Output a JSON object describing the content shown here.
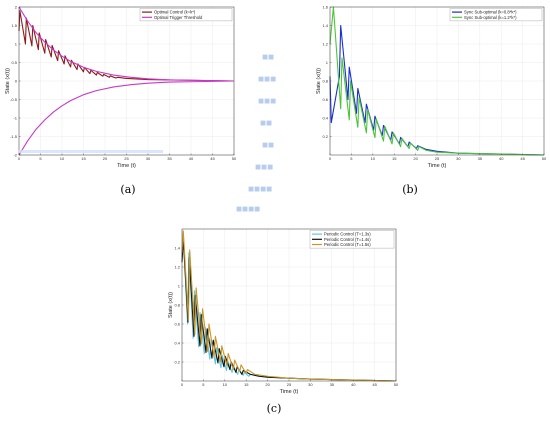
{
  "colors": {
    "axis": "#333333",
    "grid": "#e6e6e6",
    "artifact_text": "#b8ccee",
    "artifact_band": "#cfe0ff"
  },
  "chart_data": [
    {
      "panel": "a",
      "caption": "(a)",
      "type": "line",
      "xlabel": "Time (t)",
      "ylabel": "State (x(t))",
      "xlim": [
        0,
        50
      ],
      "ylim": [
        -2,
        2
      ],
      "xticks": [
        0,
        5,
        10,
        15,
        20,
        25,
        30,
        35,
        40,
        45,
        50
      ],
      "yticks": [
        -2,
        -1.5,
        -1,
        -0.5,
        0,
        0.5,
        1,
        1.5,
        2
      ],
      "grid": true,
      "legend_position": "top-right",
      "series": [
        {
          "name": "Optimal Control (k=k*)",
          "color": "#8b1a1a",
          "x": [
            0,
            0.2,
            1.5,
            1.7,
            3.0,
            3.2,
            4.5,
            4.7,
            6.0,
            6.2,
            7.5,
            7.7,
            9.0,
            9.2,
            10.5,
            10.7,
            12.0,
            12.2,
            13.5,
            13.7,
            15.0,
            15.2,
            16.5,
            16.7,
            18.0,
            18.2,
            19.5,
            19.7,
            21.0,
            21.2,
            22.5,
            23.0,
            25.0,
            30.0,
            40.0,
            50.0
          ],
          "y": [
            1.35,
            1.9,
            1.0,
            1.7,
            0.95,
            1.5,
            0.85,
            1.3,
            0.75,
            1.12,
            0.65,
            0.96,
            0.55,
            0.82,
            0.46,
            0.68,
            0.38,
            0.56,
            0.31,
            0.46,
            0.25,
            0.37,
            0.2,
            0.29,
            0.16,
            0.23,
            0.13,
            0.18,
            0.1,
            0.14,
            0.08,
            0.1,
            0.07,
            0.04,
            0.02,
            0.0
          ]
        },
        {
          "name": "Optimal Trigger Threshold",
          "color": "#c838c8",
          "x": [
            0,
            2,
            4,
            6,
            8,
            10,
            12,
            15,
            18,
            22,
            26,
            30,
            35,
            40,
            45,
            50
          ],
          "y": [
            2.05,
            1.62,
            1.3,
            1.05,
            0.84,
            0.67,
            0.53,
            0.37,
            0.26,
            0.16,
            0.1,
            0.06,
            0.03,
            0.02,
            0.01,
            0.0
          ]
        },
        {
          "name": "",
          "color": "#c838c8",
          "x": [
            0,
            2,
            4,
            6,
            8,
            10,
            12,
            15,
            18,
            22,
            26,
            30,
            35,
            40,
            45,
            50
          ],
          "y": [
            -2.05,
            -1.62,
            -1.3,
            -1.05,
            -0.84,
            -0.67,
            -0.53,
            -0.37,
            -0.26,
            -0.16,
            -0.1,
            -0.06,
            -0.03,
            -0.02,
            -0.01,
            0.0
          ]
        }
      ]
    },
    {
      "panel": "b",
      "caption": "(b)",
      "type": "line",
      "xlabel": "Time (t)",
      "ylabel": "State (x(t))",
      "xlim": [
        0,
        50
      ],
      "ylim": [
        0,
        1.6
      ],
      "xticks": [
        0,
        5,
        10,
        15,
        20,
        25,
        30,
        35,
        40,
        45,
        50
      ],
      "yticks": [
        0.2,
        0.4,
        0.6,
        0.8,
        1,
        1.2,
        1.4,
        1.6
      ],
      "grid": true,
      "legend_position": "top-right",
      "series": [
        {
          "name": "Sync Sub-optimal (k=0.8*k*)",
          "color": "#1a2ecf",
          "x": [
            0,
            0.3,
            2.2,
            2.5,
            4.2,
            4.5,
            6.2,
            6.5,
            8.2,
            8.5,
            10.2,
            10.5,
            12.2,
            12.5,
            14.2,
            14.5,
            16.2,
            16.5,
            18.2,
            18.5,
            20.2,
            20.5,
            22.5,
            25,
            30,
            40,
            50
          ],
          "y": [
            0.85,
            0.35,
            0.85,
            1.4,
            0.6,
            0.95,
            0.45,
            0.72,
            0.35,
            0.55,
            0.27,
            0.42,
            0.21,
            0.32,
            0.16,
            0.25,
            0.12,
            0.19,
            0.09,
            0.14,
            0.07,
            0.1,
            0.06,
            0.04,
            0.02,
            0.01,
            0.0
          ]
        },
        {
          "name": "Sync Sub-optimal (k=1.2*k*)",
          "color": "#4cc43a",
          "x": [
            0,
            0.8,
            2.5,
            2.8,
            4.5,
            4.8,
            6.5,
            6.8,
            8.5,
            8.8,
            10.5,
            10.8,
            12.5,
            12.8,
            14.5,
            14.8,
            16.5,
            16.8,
            18.5,
            18.8,
            20.5,
            20.8,
            22.5,
            25,
            30,
            40,
            50
          ],
          "y": [
            1.2,
            1.6,
            0.5,
            1.05,
            0.38,
            0.8,
            0.3,
            0.62,
            0.24,
            0.49,
            0.19,
            0.39,
            0.15,
            0.31,
            0.12,
            0.24,
            0.09,
            0.18,
            0.07,
            0.13,
            0.05,
            0.09,
            0.05,
            0.03,
            0.02,
            0.01,
            0.0
          ]
        }
      ]
    },
    {
      "panel": "c",
      "caption": "(c)",
      "type": "line",
      "xlabel": "Time (t)",
      "ylabel": "State (x(t))",
      "xlim": [
        0,
        50
      ],
      "ylim": [
        0,
        1.6
      ],
      "xticks": [
        0,
        5,
        10,
        15,
        20,
        25,
        30,
        35,
        40,
        45,
        50
      ],
      "yticks": [
        0.2,
        0.4,
        0.6,
        0.8,
        1,
        1.2,
        1.4
      ],
      "grid": true,
      "legend_position": "top-right",
      "series": [
        {
          "name": "Periodic Control (T=1.3s)",
          "color": "#5bc8e8",
          "x": [
            0,
            0.3,
            1.3,
            1.6,
            2.6,
            2.9,
            3.9,
            4.2,
            5.2,
            5.5,
            6.5,
            6.8,
            7.8,
            8.1,
            9.1,
            9.4,
            10.4,
            10.7,
            11.7,
            12,
            13,
            13.3,
            14.3,
            14.6,
            15.6,
            16,
            18,
            20,
            25,
            30,
            40,
            50
          ],
          "y": [
            1.3,
            1.55,
            0.6,
            1.35,
            0.45,
            0.95,
            0.36,
            0.72,
            0.29,
            0.56,
            0.23,
            0.44,
            0.18,
            0.35,
            0.14,
            0.27,
            0.11,
            0.21,
            0.09,
            0.16,
            0.07,
            0.12,
            0.06,
            0.09,
            0.05,
            0.07,
            0.05,
            0.04,
            0.03,
            0.02,
            0.01,
            0.0
          ]
        },
        {
          "name": "Periodic Control (T=1.4s)",
          "color": "#111111",
          "x": [
            0,
            0.3,
            1.4,
            1.7,
            2.8,
            3.1,
            4.2,
            4.5,
            5.6,
            5.9,
            7.0,
            7.3,
            8.4,
            8.7,
            9.8,
            10.1,
            11.2,
            11.5,
            12.6,
            12.9,
            14,
            14.3,
            16,
            18,
            20,
            25,
            30,
            40,
            50
          ],
          "y": [
            1.25,
            1.5,
            0.62,
            1.3,
            0.47,
            0.9,
            0.37,
            0.7,
            0.3,
            0.55,
            0.24,
            0.43,
            0.19,
            0.34,
            0.15,
            0.26,
            0.12,
            0.2,
            0.09,
            0.15,
            0.07,
            0.11,
            0.07,
            0.05,
            0.04,
            0.03,
            0.02,
            0.01,
            0.0
          ]
        },
        {
          "name": "Periodic Control (T=1.5s)",
          "color": "#c8962a",
          "x": [
            0,
            0.3,
            1.5,
            1.8,
            3.0,
            3.3,
            4.5,
            4.8,
            6.0,
            6.3,
            7.5,
            7.8,
            9.0,
            9.3,
            10.5,
            10.8,
            12.0,
            12.3,
            13.5,
            13.8,
            15,
            15.3,
            17,
            20,
            25,
            30,
            40,
            50
          ],
          "y": [
            1.35,
            1.58,
            0.64,
            1.38,
            0.49,
            0.98,
            0.39,
            0.76,
            0.31,
            0.6,
            0.25,
            0.47,
            0.2,
            0.37,
            0.16,
            0.29,
            0.12,
            0.22,
            0.1,
            0.17,
            0.08,
            0.12,
            0.07,
            0.05,
            0.03,
            0.02,
            0.01,
            0.0
          ]
        }
      ]
    }
  ]
}
